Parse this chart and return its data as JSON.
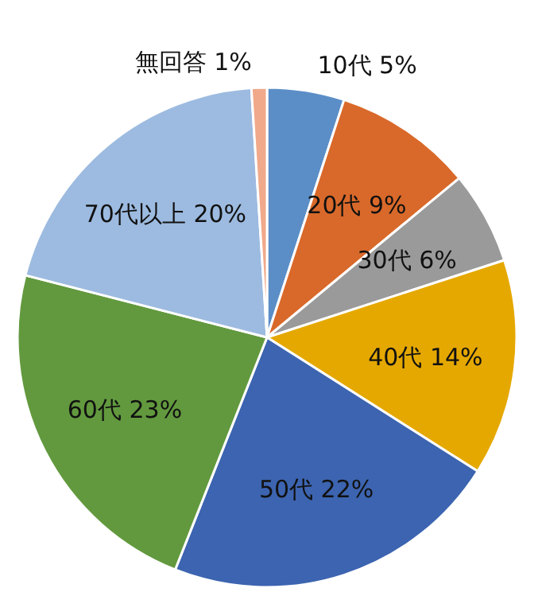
{
  "chart_data": {
    "type": "pie",
    "categories": [
      "10代",
      "20代",
      "30代",
      "40代",
      "50代",
      "60代",
      "70代以上",
      "無回答"
    ],
    "values": [
      5,
      9,
      6,
      14,
      22,
      23,
      20,
      1
    ],
    "value_labels": [
      "5%",
      "9%",
      "6%",
      "14%",
      "22%",
      "23%",
      "20%",
      "1%"
    ],
    "colors": [
      "#5b8ec7",
      "#d9692a",
      "#9a9a9a",
      "#e5a800",
      "#3c64b0",
      "#62993e",
      "#9dbbe0",
      "#f0a98a"
    ]
  }
}
